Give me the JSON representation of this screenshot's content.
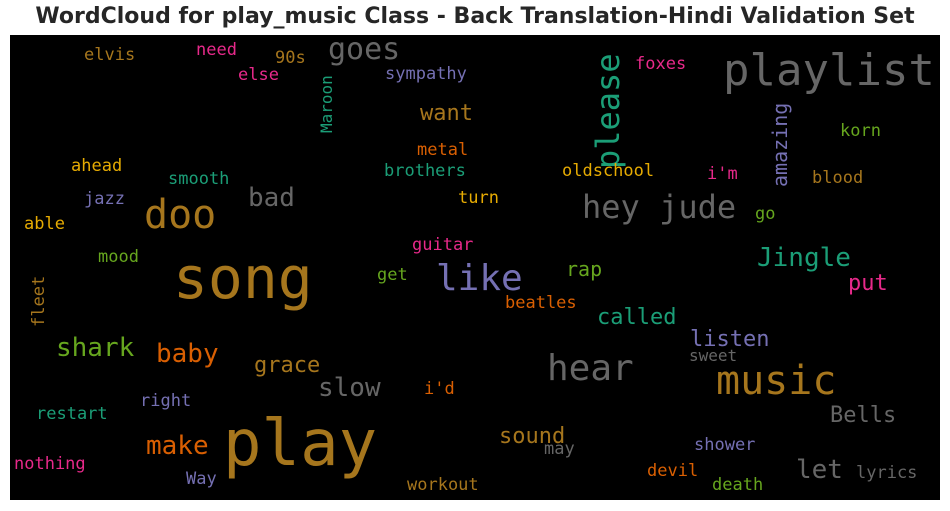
{
  "title": "WordCloud for play_music Class - Back Translation-Hindi Validation Set",
  "palette": {
    "green": "#1b9e77",
    "orange": "#d95f02",
    "purple": "#7570b3",
    "magenta": "#e7298a",
    "lime": "#66a61e",
    "gold": "#e6ab02",
    "brown": "#a6761d",
    "grey": "#666666"
  },
  "words": [
    {
      "text": "play",
      "color": "brown"
    },
    {
      "text": "song",
      "color": "brown"
    },
    {
      "text": "playlist",
      "color": "grey"
    },
    {
      "text": "music",
      "color": "brown"
    },
    {
      "text": "doo",
      "color": "brown"
    },
    {
      "text": "hear",
      "color": "grey"
    },
    {
      "text": "hey jude",
      "color": "grey"
    },
    {
      "text": "like",
      "color": "purple"
    },
    {
      "text": "please",
      "color": "green"
    },
    {
      "text": "goes",
      "color": "grey"
    },
    {
      "text": "Jingle",
      "color": "green"
    },
    {
      "text": "shark",
      "color": "lime"
    },
    {
      "text": "baby",
      "color": "orange"
    },
    {
      "text": "make",
      "color": "orange"
    },
    {
      "text": "slow",
      "color": "grey"
    },
    {
      "text": "let",
      "color": "grey"
    },
    {
      "text": "bad",
      "color": "grey"
    },
    {
      "text": "amazing",
      "color": "purple"
    },
    {
      "text": "called",
      "color": "green"
    },
    {
      "text": "listen",
      "color": "purple"
    },
    {
      "text": "grace",
      "color": "brown"
    },
    {
      "text": "sound",
      "color": "brown"
    },
    {
      "text": "Bells",
      "color": "grey"
    },
    {
      "text": "want",
      "color": "brown"
    },
    {
      "text": "rap",
      "color": "lime"
    },
    {
      "text": "put",
      "color": "magenta"
    },
    {
      "text": "Maroon",
      "color": "green"
    },
    {
      "text": "elvis",
      "color": "brown"
    },
    {
      "text": "need",
      "color": "magenta"
    },
    {
      "text": "90s",
      "color": "brown"
    },
    {
      "text": "else",
      "color": "magenta"
    },
    {
      "text": "sympathy",
      "color": "purple"
    },
    {
      "text": "foxes",
      "color": "magenta"
    },
    {
      "text": "korn",
      "color": "lime"
    },
    {
      "text": "metal",
      "color": "orange"
    },
    {
      "text": "ahead",
      "color": "gold"
    },
    {
      "text": "brothers",
      "color": "green"
    },
    {
      "text": "oldschool",
      "color": "gold"
    },
    {
      "text": "i'm",
      "color": "magenta"
    },
    {
      "text": "smooth",
      "color": "green"
    },
    {
      "text": "blood",
      "color": "brown"
    },
    {
      "text": "jazz",
      "color": "purple"
    },
    {
      "text": "turn",
      "color": "gold"
    },
    {
      "text": "go",
      "color": "lime"
    },
    {
      "text": "able",
      "color": "gold"
    },
    {
      "text": "guitar",
      "color": "magenta"
    },
    {
      "text": "mood",
      "color": "lime"
    },
    {
      "text": "get",
      "color": "lime"
    },
    {
      "text": "fleet",
      "color": "brown"
    },
    {
      "text": "beatles",
      "color": "orange"
    },
    {
      "text": "sweet",
      "color": "grey"
    },
    {
      "text": "right",
      "color": "purple"
    },
    {
      "text": "i'd",
      "color": "orange"
    },
    {
      "text": "restart",
      "color": "green"
    },
    {
      "text": "may",
      "color": "grey"
    },
    {
      "text": "shower",
      "color": "purple"
    },
    {
      "text": "nothing",
      "color": "magenta"
    },
    {
      "text": "devil",
      "color": "orange"
    },
    {
      "text": "lyrics",
      "color": "grey"
    },
    {
      "text": "Way",
      "color": "purple"
    },
    {
      "text": "workout",
      "color": "brown"
    },
    {
      "text": "death",
      "color": "lime"
    }
  ]
}
